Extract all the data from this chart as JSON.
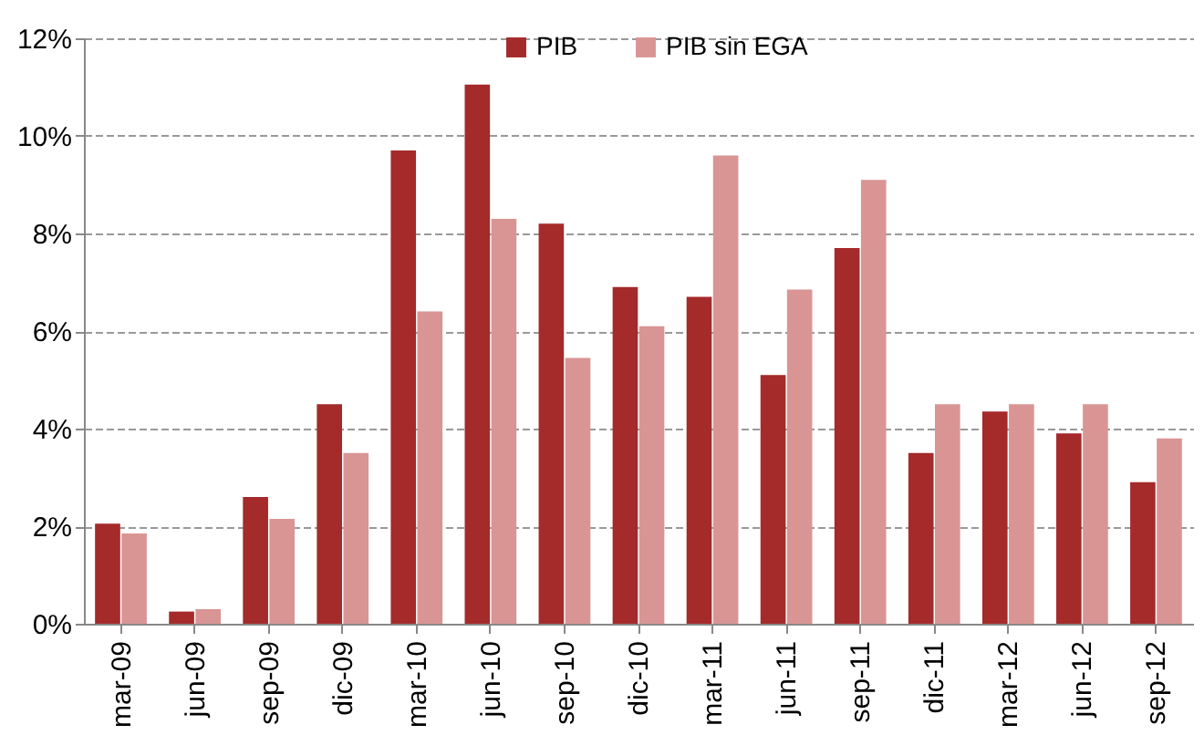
{
  "chart_data": {
    "type": "bar",
    "categories": [
      "mar-09",
      "jun-09",
      "sep-09",
      "dic-09",
      "mar-10",
      "jun-10",
      "sep-10",
      "dic-10",
      "mar-11",
      "jun-11",
      "sep-11",
      "dic-11",
      "mar-12",
      "jun-12",
      "sep-12"
    ],
    "series": [
      {
        "name": "PIB",
        "color": "#a52a2a",
        "values": [
          2.05,
          0.25,
          2.6,
          4.5,
          9.7,
          11.05,
          8.2,
          6.9,
          6.7,
          5.1,
          7.7,
          3.5,
          4.35,
          3.9,
          2.9
        ]
      },
      {
        "name": "PIB sin EGA",
        "color": "#d99594",
        "values": [
          1.85,
          0.3,
          2.15,
          3.5,
          6.4,
          8.3,
          5.45,
          6.1,
          9.6,
          6.85,
          9.1,
          4.5,
          4.5,
          4.5,
          3.8
        ]
      }
    ],
    "ylim": [
      0,
      12
    ],
    "yticks": [
      {
        "value": 0,
        "label": "0%"
      },
      {
        "value": 2,
        "label": "2%"
      },
      {
        "value": 4,
        "label": "4%"
      },
      {
        "value": 6,
        "label": "6%"
      },
      {
        "value": 8,
        "label": "8%"
      },
      {
        "value": 10,
        "label": "10%"
      },
      {
        "value": 12,
        "label": "12%"
      }
    ],
    "grid": "y",
    "legend": "top"
  }
}
